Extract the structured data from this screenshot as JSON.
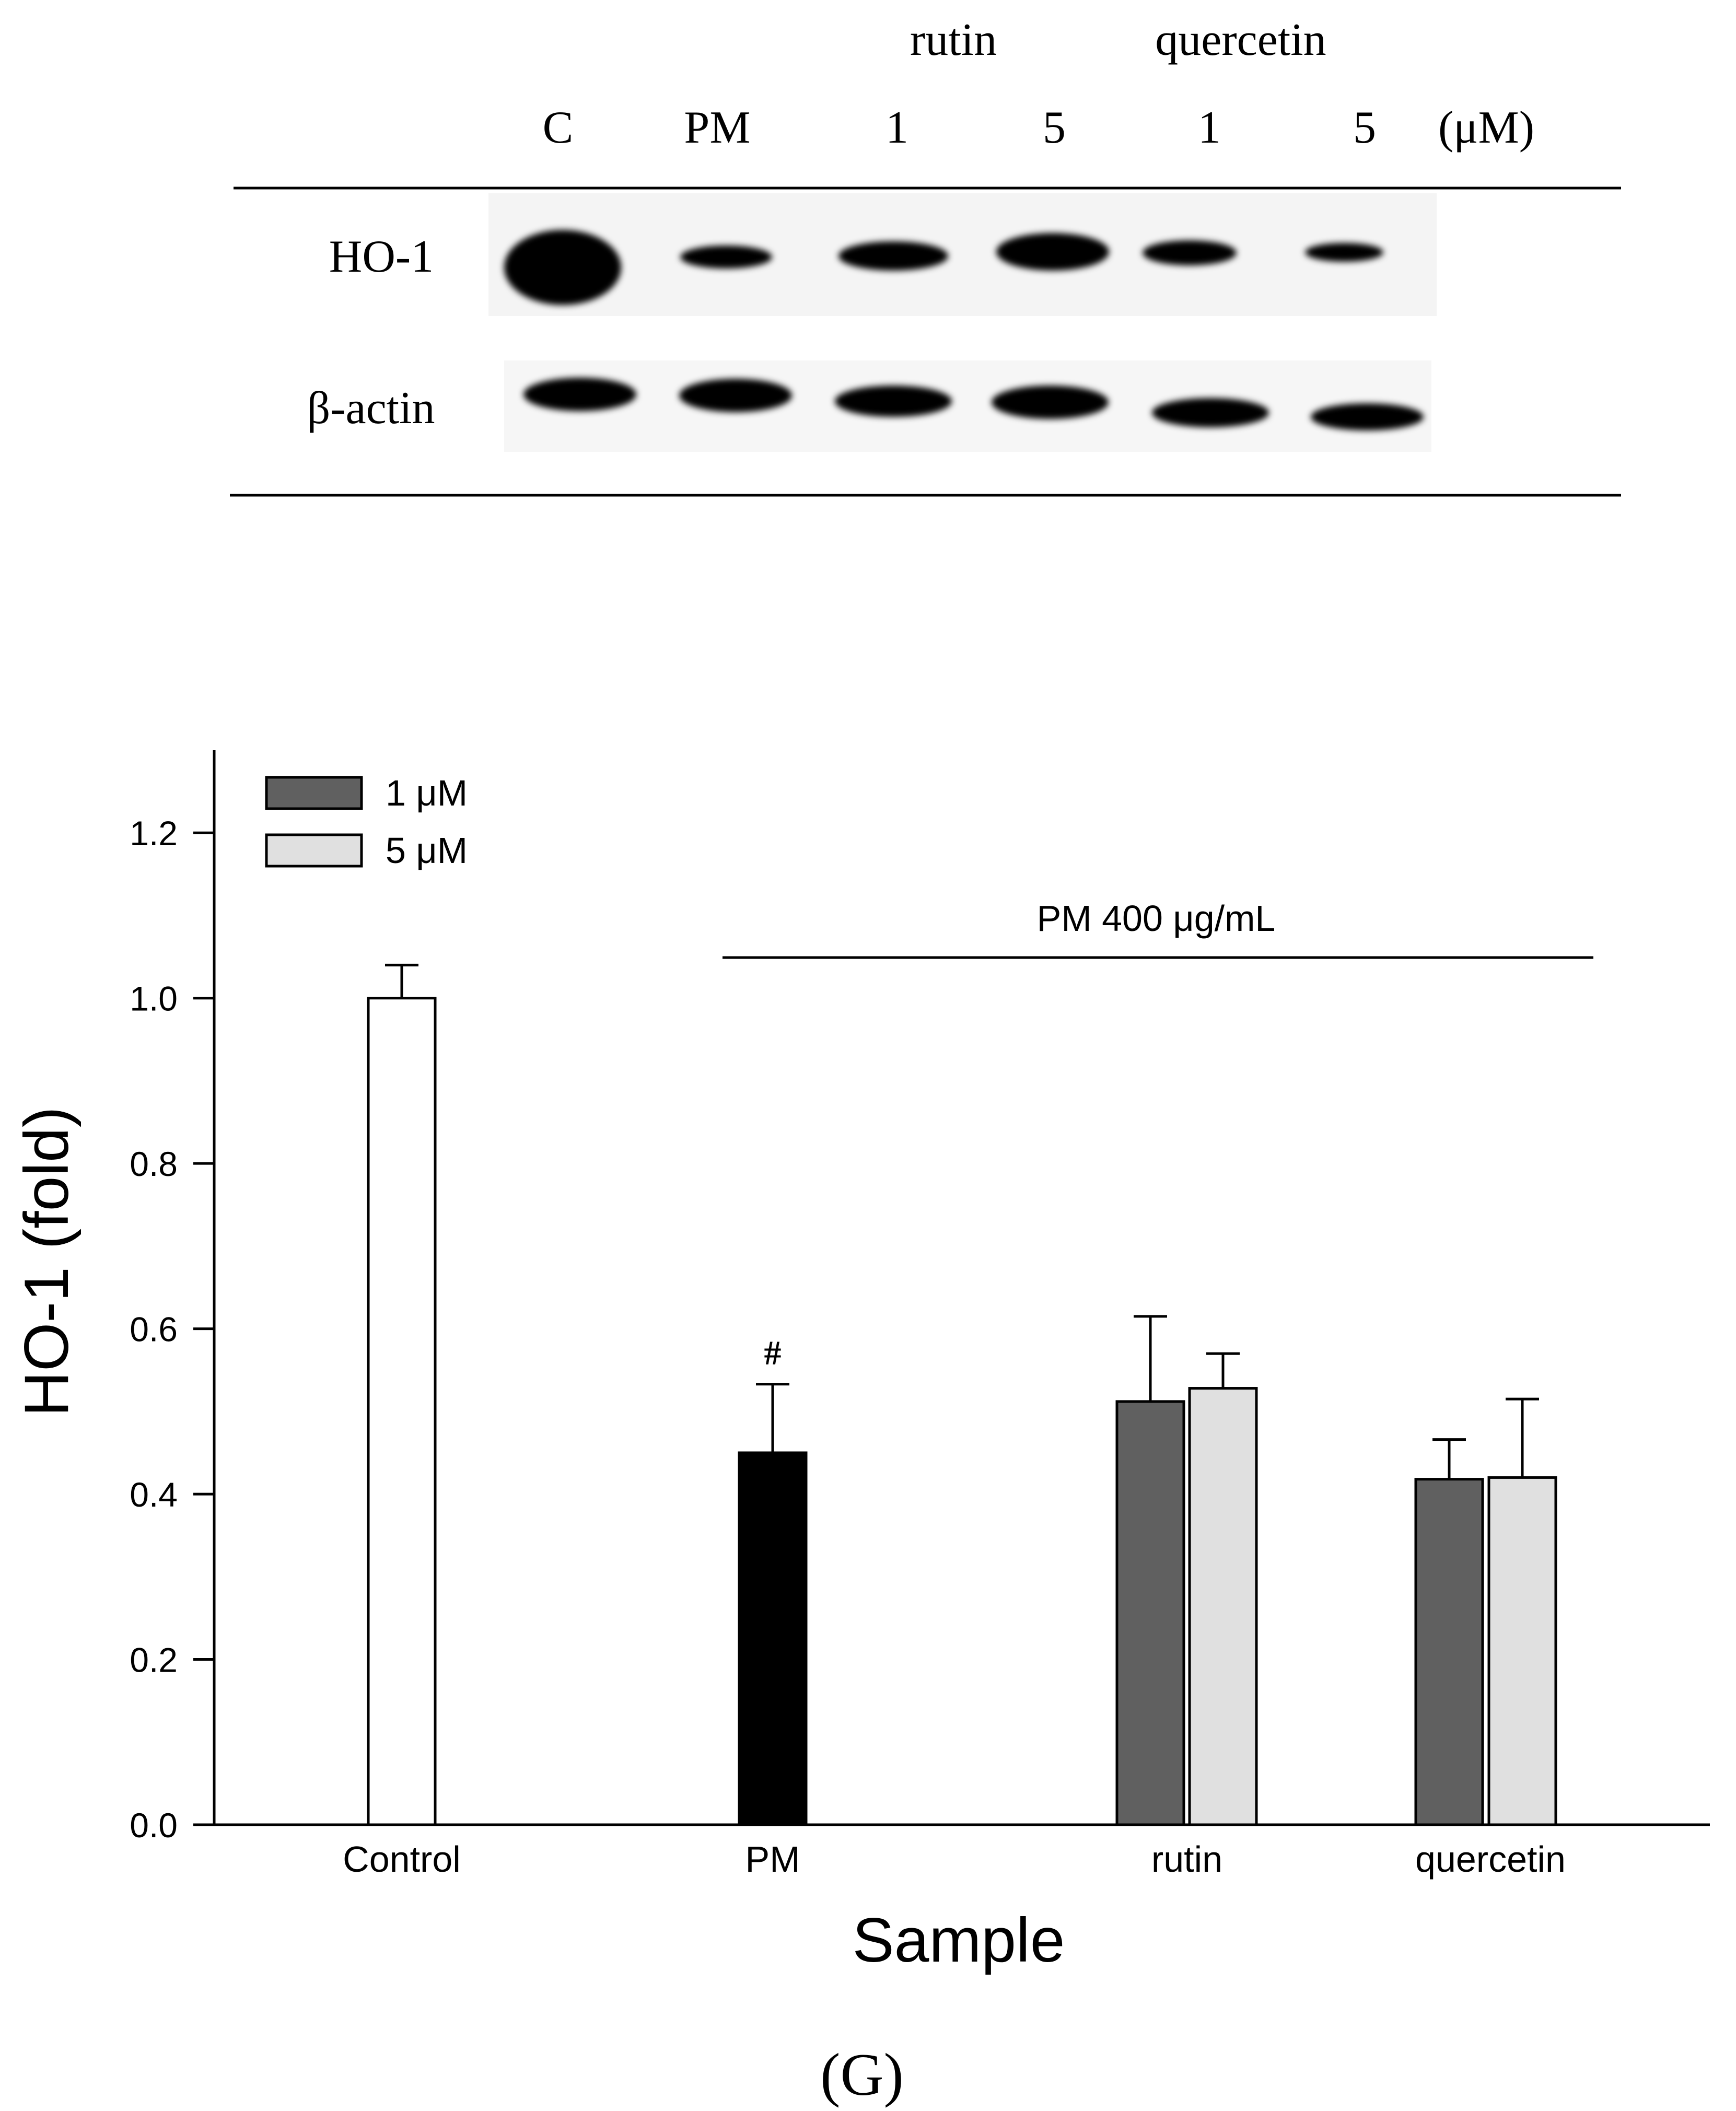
{
  "blot": {
    "group_labels": [
      "rutin",
      "quercetin"
    ],
    "lane_labels": [
      "C",
      "PM",
      "1",
      "5",
      "1",
      "5"
    ],
    "unit": "(μM)",
    "rows": [
      {
        "label": "HO-1"
      },
      {
        "label": "β-actin"
      }
    ]
  },
  "figure_label": "(G)",
  "chart_data": {
    "type": "bar",
    "xlabel": "Sample",
    "ylabel": "HO-1 (fold)",
    "ylim": [
      0,
      1.3
    ],
    "yticks": [
      "0.0",
      "0.2",
      "0.4",
      "0.6",
      "0.8",
      "1.0",
      "1.2"
    ],
    "categories": [
      "Control",
      "PM",
      "rutin",
      "quercetin"
    ],
    "legend": [
      {
        "name": "1 μM",
        "color": "#606060"
      },
      {
        "name": "5 μM",
        "color": "#e0e0e0"
      }
    ],
    "legend_position": "top-left",
    "bars": [
      {
        "category": "Control",
        "value": 1.0,
        "error": 0.04,
        "color": "#ffffff"
      },
      {
        "category": "PM",
        "value": 0.45,
        "error": 0.083,
        "color": "#000000",
        "annotation": "#"
      },
      {
        "category": "rutin",
        "series": "1 μM",
        "value": 0.512,
        "error": 0.103,
        "color": "#606060"
      },
      {
        "category": "rutin",
        "series": "5 μM",
        "value": 0.528,
        "error": 0.042,
        "color": "#e0e0e0"
      },
      {
        "category": "quercetin",
        "series": "1 μM",
        "value": 0.418,
        "error": 0.048,
        "color": "#606060"
      },
      {
        "category": "quercetin",
        "series": "5 μM",
        "value": 0.42,
        "error": 0.095,
        "color": "#e0e0e0"
      }
    ],
    "bracket_label": "PM 400 μg/mL",
    "grid": false
  }
}
